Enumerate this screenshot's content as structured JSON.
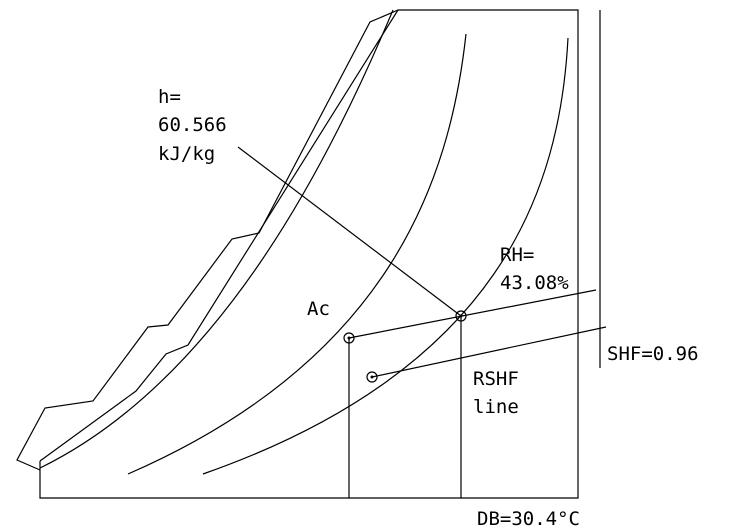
{
  "enthalpy_label": {
    "line1": "h=",
    "line2": "60.566",
    "line3": "kJ/kg"
  },
  "rh_label": {
    "line1": "RH=",
    "line2": "43.08%"
  },
  "ac_label": "Ac",
  "shf_label": "SHF=0.96",
  "rshf_label": {
    "line1": "RSHF",
    "line2": "line"
  },
  "db_label": "DB=30.4°C",
  "colors": {
    "ink": "#000000",
    "background": "#ffffff"
  }
}
